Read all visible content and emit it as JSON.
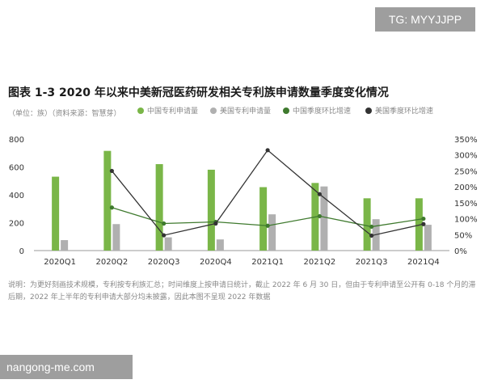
{
  "watermark": "TG: MYYJJPP",
  "source_tag": "nangong-me.com",
  "unit_note": "（单位：族）（资料来源：智慧芽）",
  "footnote": "说明：为更好刻画技术规模，专利按专利族汇总；时间维度上按申请日统计，截止 2022 年 6 月 30 日，但由于专利申请至公开有 0-18 个月的滞后期，2022 年上半年的专利申请大部分均未披露，因此本图不呈现 2022 年数据",
  "colors": {
    "china_bar": "#7ab648",
    "us_bar": "#b0b0b0",
    "china_line": "#3f7a2e",
    "us_line": "#333333"
  },
  "chart_data": {
    "type": "bar",
    "title": "图表 1-3 2020 年以来中美新冠医药研发相关专利族申请数量季度变化情况",
    "categories": [
      "2020Q1",
      "2020Q2",
      "2020Q3",
      "2020Q4",
      "2021Q1",
      "2021Q2",
      "2021Q3",
      "2021Q4"
    ],
    "series": [
      {
        "name": "中国专利申请量",
        "kind": "bar",
        "axis": "left",
        "values": [
          530,
          715,
          620,
          580,
          455,
          485,
          375,
          375
        ]
      },
      {
        "name": "美国专利申请量",
        "kind": "bar",
        "axis": "left",
        "values": [
          75,
          190,
          95,
          80,
          260,
          460,
          225,
          185
        ]
      },
      {
        "name": "中国季度环比增速",
        "kind": "line",
        "axis": "right",
        "values": [
          null,
          135,
          85,
          90,
          78,
          108,
          75,
          100
        ]
      },
      {
        "name": "美国季度环比增速",
        "kind": "line",
        "axis": "right",
        "values": [
          null,
          250,
          48,
          85,
          315,
          177,
          47,
          83
        ]
      }
    ],
    "ylim_left": [
      0,
      800
    ],
    "left_ticks": [
      0,
      200,
      400,
      600,
      800
    ],
    "ylim_right": [
      0,
      350
    ],
    "right_ticks": [
      "0%",
      "50%",
      "100%",
      "150%",
      "200%",
      "250%",
      "300%",
      "350%"
    ],
    "legend_position": "top",
    "grid": false
  }
}
